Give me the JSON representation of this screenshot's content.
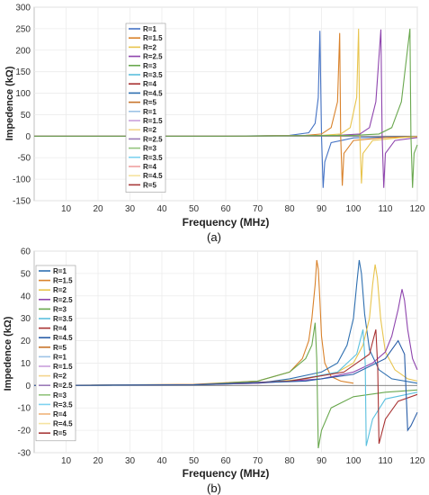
{
  "chart_data": [
    {
      "type": "line",
      "panel_label": "(a)",
      "title": "",
      "xlabel": "Frequency (MHz)",
      "ylabel": "Impedence  (kΩ)",
      "xlim": [
        0,
        120
      ],
      "ylim": [
        -150,
        300
      ],
      "xticks": [
        10,
        20,
        30,
        40,
        50,
        60,
        70,
        80,
        90,
        100,
        110,
        120
      ],
      "yticks": [
        -150,
        -100,
        -50,
        0,
        50,
        100,
        150,
        200,
        250,
        300
      ],
      "legend_position": "top-left",
      "legend": [
        "R=1",
        "R=1.5",
        "R=2",
        "R=2.5",
        "R=3",
        "R=3.5",
        "R=4",
        "R=4.5",
        "R=5",
        "R=1",
        "R=1.5",
        "R=2",
        "R=2.5",
        "R=3",
        "R=3.5",
        "R=4",
        "R=4.5",
        "R=5"
      ],
      "legend_colors": [
        "#4472c4",
        "#d9822b",
        "#e8c44d",
        "#8e44ad",
        "#6aa84f",
        "#5bc0de",
        "#a83232",
        "#2e6fb0",
        "#c8742a",
        "#9dc3e6",
        "#c9a0dc",
        "#f4d58d",
        "#9b7bb8",
        "#93c47d",
        "#7fd3f0",
        "#f0a0a0",
        "#f6e3a1",
        "#a83a3a"
      ],
      "series": [
        {
          "name": "R=1",
          "x": [
            0,
            60,
            80,
            86,
            88,
            89,
            89.5,
            90,
            90.5,
            91,
            93,
            100,
            110,
            120
          ],
          "values": [
            0,
            0,
            2,
            8,
            30,
            90,
            245,
            0,
            -120,
            -60,
            -15,
            -4,
            -2,
            -1
          ]
        },
        {
          "name": "R=1.5",
          "x": [
            0,
            60,
            85,
            90,
            93,
            95,
            95.7,
            96,
            96.5,
            97,
            100,
            110,
            120
          ],
          "values": [
            0,
            0,
            2,
            5,
            20,
            80,
            240,
            0,
            -115,
            -40,
            -10,
            -3,
            -1
          ]
        },
        {
          "name": "R=2",
          "x": [
            0,
            60,
            90,
            96,
            99,
            101,
            101.6,
            102,
            102.5,
            103,
            106,
            115,
            120
          ],
          "values": [
            0,
            0,
            2,
            5,
            20,
            90,
            250,
            0,
            -110,
            -40,
            -10,
            -3,
            -1
          ]
        },
        {
          "name": "R=2.5",
          "x": [
            0,
            60,
            95,
            102,
            105,
            107,
            108.6,
            109,
            109.5,
            110,
            113,
            120
          ],
          "values": [
            0,
            0,
            2,
            5,
            20,
            80,
            248,
            0,
            -120,
            -40,
            -10,
            -3
          ]
        },
        {
          "name": "R=3",
          "x": [
            0,
            60,
            100,
            108,
            112,
            115,
            117.7,
            118,
            118.5,
            119,
            120
          ],
          "values": [
            0,
            0,
            2,
            5,
            20,
            80,
            250,
            0,
            -120,
            -40,
            -20
          ]
        }
      ]
    },
    {
      "type": "line",
      "panel_label": "(b)",
      "title": "",
      "xlabel": "Frequency (MHz)",
      "ylabel": "Impedence  (kΩ)",
      "xlim": [
        0,
        120
      ],
      "ylim": [
        -30,
        60
      ],
      "xticks": [
        10,
        20,
        30,
        40,
        50,
        60,
        70,
        80,
        90,
        100,
        110,
        120
      ],
      "yticks": [
        -30,
        -20,
        -10,
        0,
        10,
        20,
        30,
        40,
        50,
        60
      ],
      "legend_position": "top-left",
      "legend": [
        "R=1",
        "R=1.5",
        "R=2",
        "R=2.5",
        "R=3",
        "R=3.5",
        "R=4",
        "R=4.5",
        "R=5",
        "R=1",
        "R=1.5",
        "R=2",
        "R=2.5",
        "R=3",
        "R=3.5",
        "R=4",
        "R=4.5",
        "R=5"
      ],
      "legend_colors": [
        "#2e6fb0",
        "#d9822b",
        "#e8c44d",
        "#8e44ad",
        "#6aa84f",
        "#5bc0de",
        "#a83232",
        "#2a5ea8",
        "#c8742a",
        "#9dc3e6",
        "#c9a0dc",
        "#f4d58d",
        "#9b7bb8",
        "#93c47d",
        "#7fd3f0",
        "#f0b27a",
        "#f6e3a1",
        "#a83a3a"
      ],
      "series": [
        {
          "name": "R=1.5",
          "x": [
            0,
            50,
            70,
            80,
            84,
            86,
            87,
            88,
            88.5,
            89,
            89.5,
            90,
            91,
            93,
            96,
            100
          ],
          "values": [
            0,
            0.5,
            2,
            6,
            12,
            20,
            30,
            45,
            56,
            52,
            38,
            22,
            10,
            4,
            2,
            1
          ]
        },
        {
          "name": "R=1",
          "x": [
            0,
            50,
            70,
            80,
            90,
            95,
            98,
            100,
            101,
            101.8,
            102.5,
            103.5,
            105,
            108,
            112,
            120
          ],
          "values": [
            0,
            0.3,
            1,
            3,
            6,
            10,
            18,
            30,
            45,
            56,
            50,
            32,
            16,
            7,
            3,
            1
          ]
        },
        {
          "name": "R=2",
          "x": [
            0,
            50,
            70,
            85,
            95,
            100,
            103,
            105,
            106,
            106.8,
            107.5,
            108.5,
            110,
            113,
            117,
            120
          ],
          "values": [
            0,
            0.3,
            1,
            3,
            6,
            10,
            18,
            30,
            45,
            54,
            48,
            30,
            15,
            7,
            3,
            2
          ]
        },
        {
          "name": "R=2.5",
          "x": [
            0,
            50,
            70,
            90,
            100,
            106,
            110,
            112,
            114,
            115.2,
            116,
            117,
            118.5,
            120
          ],
          "values": [
            0,
            0.3,
            1,
            3,
            6,
            10,
            15,
            22,
            34,
            43,
            38,
            25,
            12,
            7
          ]
        },
        {
          "name": "R=3",
          "x": [
            0,
            50,
            70,
            80,
            85,
            87,
            88,
            88.5,
            89,
            90,
            93,
            100,
            110,
            120
          ],
          "values": [
            0,
            0.3,
            2,
            6,
            12,
            18,
            28,
            12,
            -28,
            -20,
            -10,
            -5,
            -3,
            -2
          ]
        },
        {
          "name": "R=3.5",
          "x": [
            0,
            50,
            80,
            95,
            101,
            103,
            103.7,
            104,
            106,
            110,
            120
          ],
          "values": [
            0,
            0.3,
            2,
            6,
            14,
            25,
            10,
            -27,
            -15,
            -6,
            -3
          ]
        },
        {
          "name": "R=4",
          "x": [
            0,
            50,
            80,
            97,
            105,
            107,
            107.6,
            108,
            110,
            114,
            120
          ],
          "values": [
            0,
            0.3,
            2,
            6,
            14,
            25,
            8,
            -26,
            -15,
            -7,
            -4
          ]
        },
        {
          "name": "R=4.5",
          "x": [
            0,
            50,
            85,
            100,
            110,
            114,
            116,
            117,
            118,
            120
          ],
          "values": [
            0,
            0.3,
            2,
            5,
            12,
            20,
            14,
            -20,
            -18,
            -12
          ]
        }
      ]
    }
  ]
}
